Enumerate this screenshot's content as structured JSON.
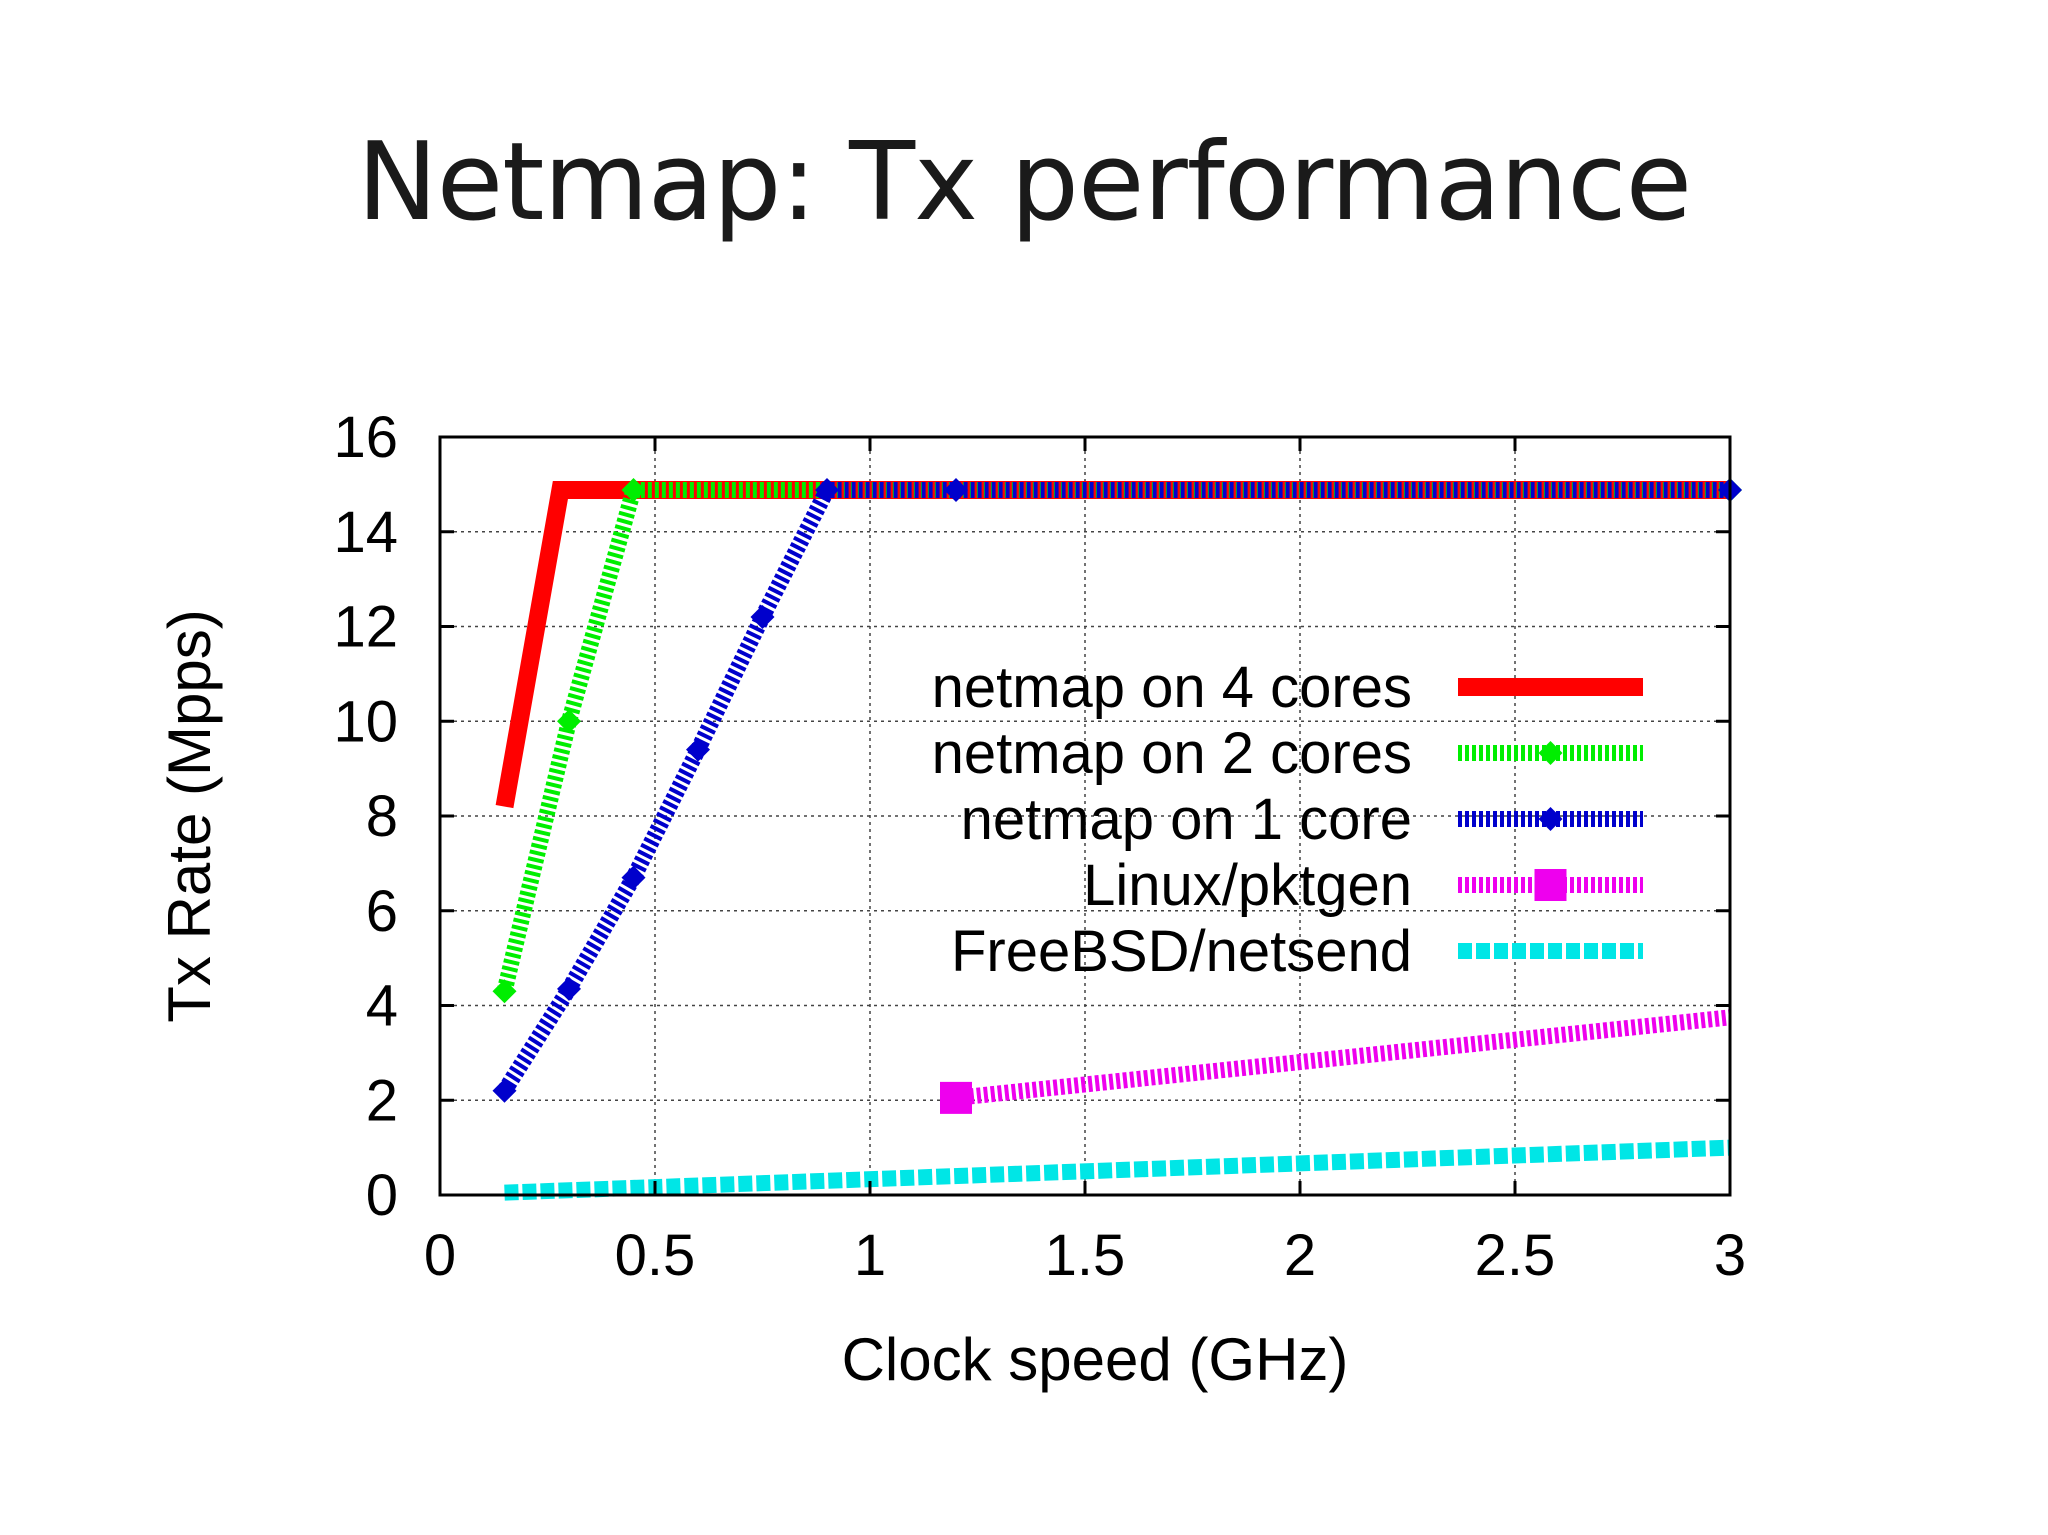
{
  "slide": {
    "title": "Netmap: Tx performance"
  },
  "chart_data": {
    "type": "line",
    "xlabel": "Clock speed (GHz)",
    "ylabel": "Tx Rate (Mpps)",
    "xlim": [
      0,
      3
    ],
    "ylim": [
      0,
      16
    ],
    "x_ticks": [
      "0",
      "0.5",
      "1",
      "1.5",
      "2",
      "2.5",
      "3"
    ],
    "y_ticks": [
      "0",
      "2",
      "4",
      "6",
      "8",
      "10",
      "12",
      "14",
      "16"
    ],
    "grid": true,
    "legend_position": "center-right",
    "series": [
      {
        "name": "netmap on 4 cores",
        "color": "#ff0000",
        "style": "solid",
        "marker": "none",
        "points": [
          [
            0.15,
            8.2
          ],
          [
            0.28,
            14.88
          ],
          [
            3.0,
            14.88
          ]
        ]
      },
      {
        "name": "netmap on 2 cores",
        "color": "#00ee00",
        "style": "dotted",
        "marker": "diamond",
        "points": [
          [
            0.15,
            4.3
          ],
          [
            0.3,
            10.0
          ],
          [
            0.45,
            14.88
          ],
          [
            3.0,
            14.88
          ]
        ]
      },
      {
        "name": "netmap on 1 core",
        "color": "#0000cc",
        "style": "dotted",
        "marker": "diamond",
        "points": [
          [
            0.15,
            2.2
          ],
          [
            0.3,
            4.35
          ],
          [
            0.45,
            6.7
          ],
          [
            0.6,
            9.4
          ],
          [
            0.75,
            12.2
          ],
          [
            0.9,
            14.88
          ],
          [
            1.2,
            14.88
          ],
          [
            3.0,
            14.88
          ]
        ]
      },
      {
        "name": "Linux/pktgen",
        "color": "#ee00ee",
        "style": "dotted",
        "marker": "square",
        "points": [
          [
            1.2,
            2.05
          ],
          [
            3.0,
            3.75
          ]
        ]
      },
      {
        "name": "FreeBSD/netsend",
        "color": "#00e6e6",
        "style": "dashed",
        "marker": "none",
        "points": [
          [
            0.15,
            0.05
          ],
          [
            3.0,
            1.0
          ]
        ]
      }
    ]
  }
}
